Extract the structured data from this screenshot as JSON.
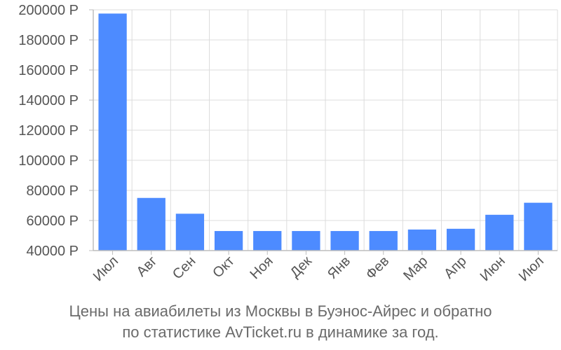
{
  "chart_data": {
    "type": "bar",
    "categories": [
      "Июл",
      "Авг",
      "Сен",
      "Окт",
      "Ноя",
      "Дек",
      "Янв",
      "Фев",
      "Мар",
      "Апр",
      "Июн",
      "Июл"
    ],
    "values": [
      197500,
      75000,
      64500,
      53000,
      53000,
      53000,
      53000,
      53000,
      54000,
      54500,
      63800,
      71800
    ],
    "yticks": [
      "200000 Р",
      "180000 Р",
      "160000 Р",
      "140000 Р",
      "120000 Р",
      "100000 Р",
      "80000 Р",
      "60000 Р",
      "40000 Р"
    ],
    "ylim": [
      40000,
      200000
    ],
    "grid": true,
    "bar_color": "#4d8bff"
  },
  "caption": {
    "line1": "Цены на авиабилеты из Москвы в Буэнос-Айрес и обратно",
    "line2": "по статистике AvTicket.ru в динамике за год."
  }
}
